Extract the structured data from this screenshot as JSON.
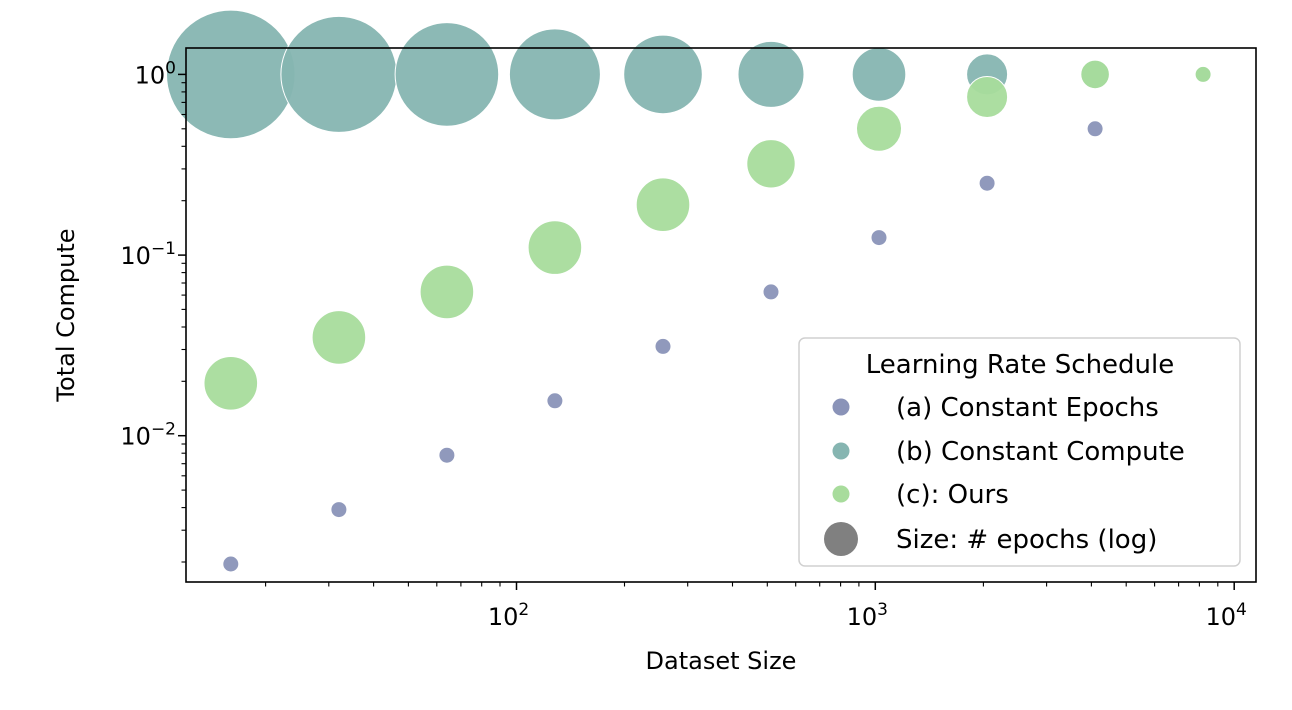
{
  "chart_data": {
    "type": "scatter",
    "xlabel": "Dataset Size",
    "ylabel": "Total Compute",
    "xscale": "log",
    "yscale": "log",
    "xlim": [
      12,
      11500
    ],
    "ylim": [
      0.00155,
      1.4
    ],
    "grid": false,
    "x_ticks": [
      {
        "value": 100,
        "base": "10",
        "exp": "2"
      },
      {
        "value": 1000,
        "base": "10",
        "exp": "3"
      },
      {
        "value": 10000,
        "base": "10",
        "exp": "4"
      }
    ],
    "y_ticks": [
      {
        "value": 1,
        "base": "10",
        "exp": "0"
      },
      {
        "value": 0.1,
        "base": "10",
        "exp": "−1"
      },
      {
        "value": 0.01,
        "base": "10",
        "exp": "−2"
      }
    ],
    "legend": {
      "title": "Learning Rate Schedule",
      "position": "lower-right",
      "size_label": "Size: # epochs (log)",
      "size_color": "#808080"
    },
    "series": [
      {
        "name": "(a) Constant Epochs",
        "color": "#8a93b8",
        "x": [
          16,
          32,
          64,
          128,
          256,
          512,
          1024,
          2048,
          4096
        ],
        "y": [
          0.00195,
          0.0039,
          0.0078,
          0.0156,
          0.0312,
          0.0625,
          0.125,
          0.25,
          0.5
        ],
        "epochs": [
          1,
          1,
          1,
          1,
          1,
          1,
          1,
          1,
          1
        ]
      },
      {
        "name": "(b) Constant Compute",
        "color": "#86b5b1",
        "x": [
          16,
          32,
          64,
          128,
          256,
          512,
          1024,
          2048,
          4096,
          8192
        ],
        "y": [
          1,
          1,
          1,
          1,
          1,
          1,
          1,
          1,
          1,
          1
        ],
        "epochs": [
          512,
          256,
          128,
          64,
          32,
          16,
          8,
          4,
          2,
          1
        ]
      },
      {
        "name": "(c): Ours",
        "color": "#a8dc9c",
        "x": [
          16,
          32,
          64,
          128,
          256,
          512,
          1024,
          2048,
          4096,
          8192
        ],
        "y": [
          0.0195,
          0.035,
          0.0625,
          0.11,
          0.19,
          0.32,
          0.5,
          0.75,
          1,
          1
        ],
        "epochs": [
          8,
          8,
          8,
          8,
          8,
          6,
          5,
          4,
          2,
          1
        ]
      }
    ]
  }
}
